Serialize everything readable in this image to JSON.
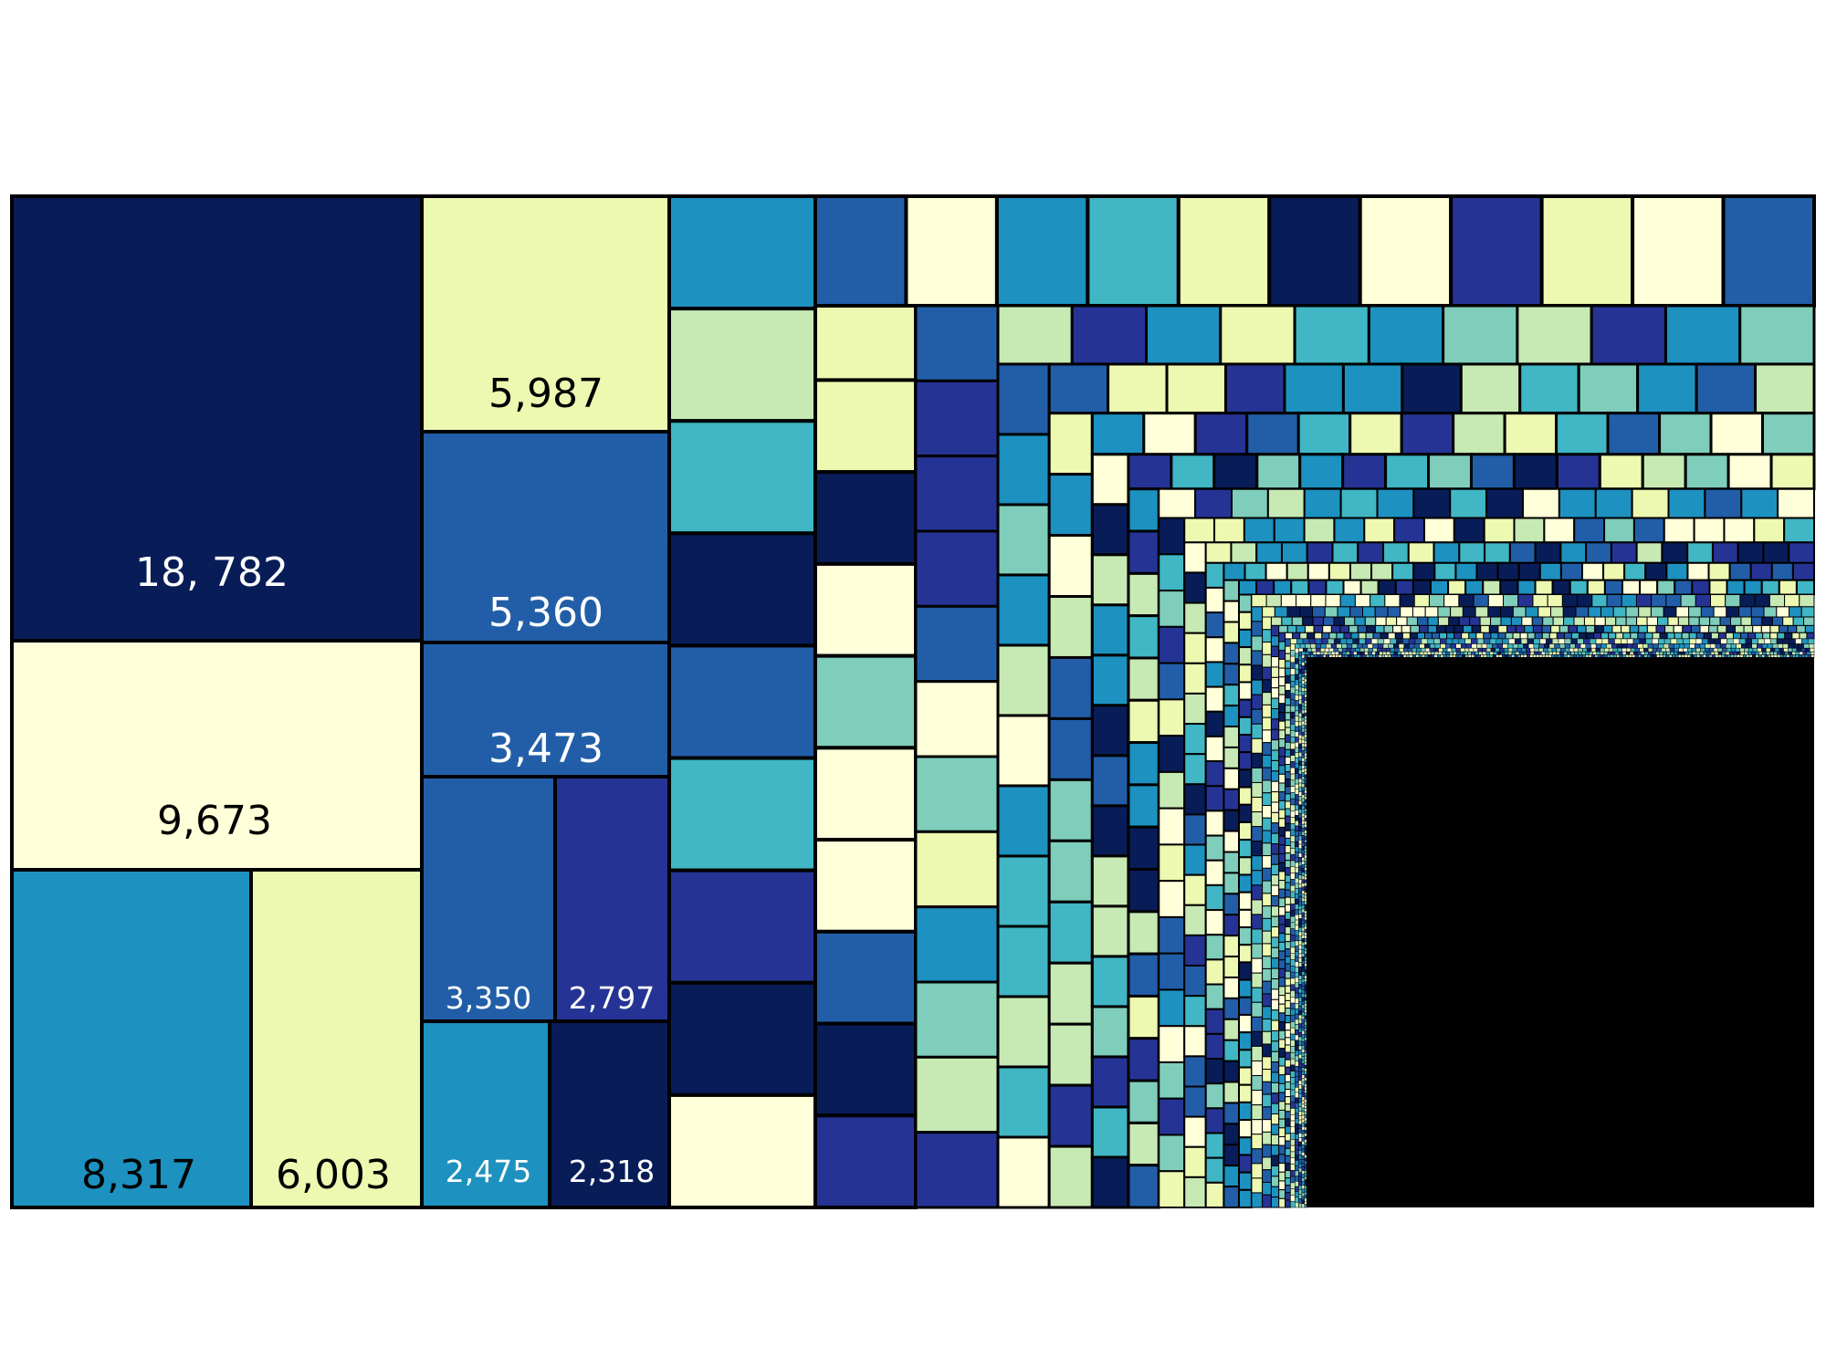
{
  "chart_data": {
    "type": "treemap",
    "labeled_cells": [
      {
        "label": "18, 782",
        "value": 18782,
        "color": "#081d58",
        "text_color": "#ffffff"
      },
      {
        "label": "9,673",
        "value": 9673,
        "color": "#ffffd9",
        "text_color": "#000000"
      },
      {
        "label": "8,317",
        "value": 8317,
        "color": "#1d91c0",
        "text_color": "#000000"
      },
      {
        "label": "6,003",
        "value": 6003,
        "color": "#edf8b1",
        "text_color": "#000000"
      },
      {
        "label": "5,987",
        "value": 5987,
        "color": "#edf8b1",
        "text_color": "#000000"
      },
      {
        "label": "5,360",
        "value": 5360,
        "color": "#225ea8",
        "text_color": "#ffffff"
      },
      {
        "label": "3,473",
        "value": 3473,
        "color": "#225ea8",
        "text_color": "#ffffff"
      },
      {
        "label": "3,350",
        "value": 3350,
        "color": "#225ea8",
        "text_color": "#ffffff"
      },
      {
        "label": "2,797",
        "value": 2797,
        "color": "#253494",
        "text_color": "#ffffff"
      },
      {
        "label": "2,475",
        "value": 2475,
        "color": "#1d91c0",
        "text_color": "#ffffff"
      },
      {
        "label": "2,318",
        "value": 2318,
        "color": "#081d58",
        "text_color": "#ffffff"
      }
    ],
    "palette": [
      "#ffffd9",
      "#edf8b1",
      "#c7e9b4",
      "#7fcdbb",
      "#41b6c4",
      "#1d91c0",
      "#225ea8",
      "#253494",
      "#081d58"
    ],
    "border_color": "#000000",
    "legend": "none",
    "axes": "none"
  }
}
